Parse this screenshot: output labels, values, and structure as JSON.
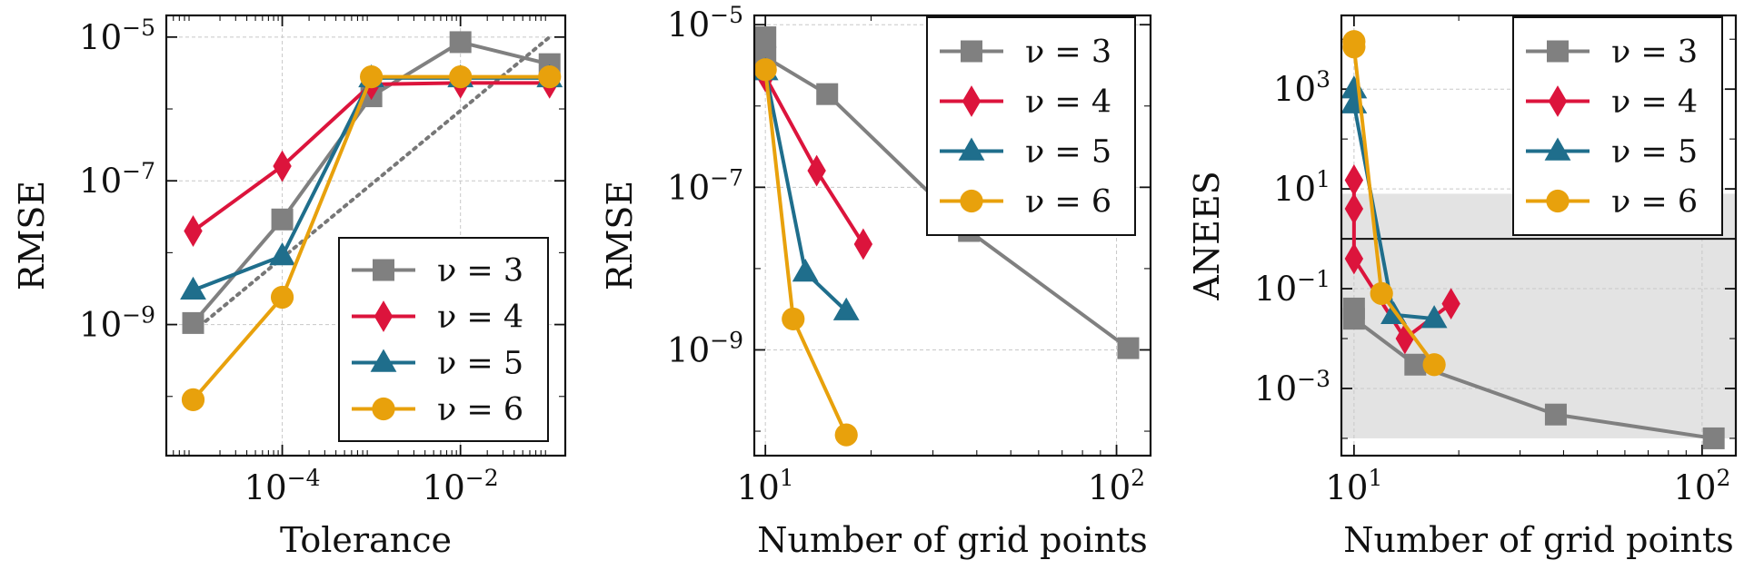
{
  "colors": {
    "nu3": "#808080",
    "nu4": "#dc143c",
    "nu5": "#1f6e8c",
    "nu6": "#e8a10c",
    "ref_line": "#777777",
    "band": "#e3e3e3"
  },
  "chart_data": [
    {
      "type": "line",
      "xlabel": "Tolerance",
      "ylabel": "RMSE",
      "xscale": "log",
      "yscale": "log",
      "xlim": [
        5e-06,
        0.15
      ],
      "ylim": [
        1.5e-11,
        2e-05
      ],
      "xticks": [
        {
          "v": 0.0001,
          "base": "10",
          "exp": "−4"
        },
        {
          "v": 0.01,
          "base": "10",
          "exp": "−2"
        }
      ],
      "yticks": [
        {
          "v": 1e-09,
          "base": "10",
          "exp": "−9"
        },
        {
          "v": 1e-07,
          "base": "10",
          "exp": "−7"
        },
        {
          "v": 1e-05,
          "base": "10",
          "exp": "−5"
        }
      ],
      "legend": "lower-right",
      "reference_line": {
        "style": "dotted",
        "x": [
          1e-05,
          0.1
        ],
        "y": [
          8e-10,
          1e-05
        ]
      },
      "series": [
        {
          "name": "ν = 3",
          "key": "nu3",
          "marker": "square",
          "x": [
            1e-05,
            0.0001,
            0.001,
            0.01,
            0.1
          ],
          "y": [
            1.05e-09,
            2.9e-08,
            1.5e-06,
            8.5e-06,
            4.2e-06
          ]
        },
        {
          "name": "ν = 4",
          "key": "nu4",
          "marker": "diamond",
          "x": [
            1e-05,
            0.0001,
            0.001,
            0.01,
            0.1
          ],
          "y": [
            2e-08,
            1.6e-07,
            2.2e-06,
            2.3e-06,
            2.3e-06
          ]
        },
        {
          "name": "ν = 5",
          "key": "nu5",
          "marker": "triangle",
          "x": [
            1e-05,
            0.0001,
            0.001,
            0.01,
            0.1
          ],
          "y": [
            3e-09,
            9e-09,
            2.7e-06,
            2.7e-06,
            2.7e-06
          ]
        },
        {
          "name": "ν = 6",
          "key": "nu6",
          "marker": "circle",
          "x": [
            1e-05,
            0.0001,
            0.001,
            0.01,
            0.1
          ],
          "y": [
            9e-11,
            2.4e-09,
            2.8e-06,
            2.8e-06,
            2.8e-06
          ]
        }
      ]
    },
    {
      "type": "line",
      "xlabel": "Number of grid points",
      "ylabel": "RMSE",
      "xscale": "log",
      "yscale": "log",
      "xlim": [
        9.3,
        125
      ],
      "ylim": [
        5e-11,
        1.3e-05
      ],
      "xticks": [
        {
          "v": 10,
          "base": "10",
          "exp": "1"
        },
        {
          "v": 100,
          "base": "10",
          "exp": "2"
        }
      ],
      "yticks": [
        {
          "v": 1e-09,
          "base": "10",
          "exp": "−9"
        },
        {
          "v": 1e-07,
          "base": "10",
          "exp": "−7"
        },
        {
          "v": 1e-05,
          "base": "10",
          "exp": "−5"
        }
      ],
      "legend": "top-right",
      "series": [
        {
          "name": "ν = 3",
          "key": "nu3",
          "marker": "square",
          "x": [
            10,
            10,
            15,
            38,
            108
          ],
          "y": [
            7e-06,
            4e-06,
            1.4e-06,
            2.9e-08,
            1.05e-09
          ]
        },
        {
          "name": "ν = 4",
          "key": "nu4",
          "marker": "diamond",
          "x": [
            10,
            14,
            19
          ],
          "y": [
            2.3e-06,
            1.6e-07,
            2e-08
          ]
        },
        {
          "name": "ν = 5",
          "key": "nu5",
          "marker": "triangle",
          "x": [
            10,
            13,
            17
          ],
          "y": [
            2.7e-06,
            9e-09,
            3e-09
          ]
        },
        {
          "name": "ν = 6",
          "key": "nu6",
          "marker": "circle",
          "x": [
            10,
            12,
            17
          ],
          "y": [
            2.8e-06,
            2.4e-09,
            9e-11
          ]
        }
      ]
    },
    {
      "type": "line",
      "xlabel": "Number of grid points",
      "ylabel": "ANEES",
      "xscale": "log",
      "yscale": "log",
      "xlim": [
        9.2,
        125
      ],
      "ylim": [
        4.5e-05,
        30000.0
      ],
      "xticks": [
        {
          "v": 10,
          "base": "10",
          "exp": "1"
        },
        {
          "v": 100,
          "base": "10",
          "exp": "2"
        }
      ],
      "yticks": [
        {
          "v": 0.001,
          "base": "10",
          "exp": "−3"
        },
        {
          "v": 0.1,
          "base": "10",
          "exp": "−1"
        },
        {
          "v": 10,
          "base": "10",
          "exp": "1"
        },
        {
          "v": 1000,
          "base": "10",
          "exp": "3"
        }
      ],
      "legend": "top-right",
      "reference_hline": 1,
      "band": [
        0.0001,
        8
      ],
      "series": [
        {
          "name": "ν = 3",
          "key": "nu3",
          "marker": "square",
          "x": [
            10,
            10,
            15,
            38,
            108
          ],
          "y": [
            0.04,
            0.025,
            0.003,
            0.0003,
            0.0001
          ]
        },
        {
          "name": "ν = 4",
          "key": "nu4",
          "marker": "diamond",
          "x": [
            10,
            10,
            10,
            14,
            19
          ],
          "y": [
            15,
            4,
            0.4,
            0.01,
            0.05
          ]
        },
        {
          "name": "ν = 5",
          "key": "nu5",
          "marker": "triangle",
          "x": [
            10,
            10,
            13,
            17
          ],
          "y": [
            1000,
            500,
            0.03,
            0.025
          ]
        },
        {
          "name": "ν = 6",
          "key": "nu6",
          "marker": "circle",
          "x": [
            10,
            10,
            12,
            17
          ],
          "y": [
            9000,
            7000,
            0.08,
            0.003
          ]
        }
      ]
    }
  ]
}
